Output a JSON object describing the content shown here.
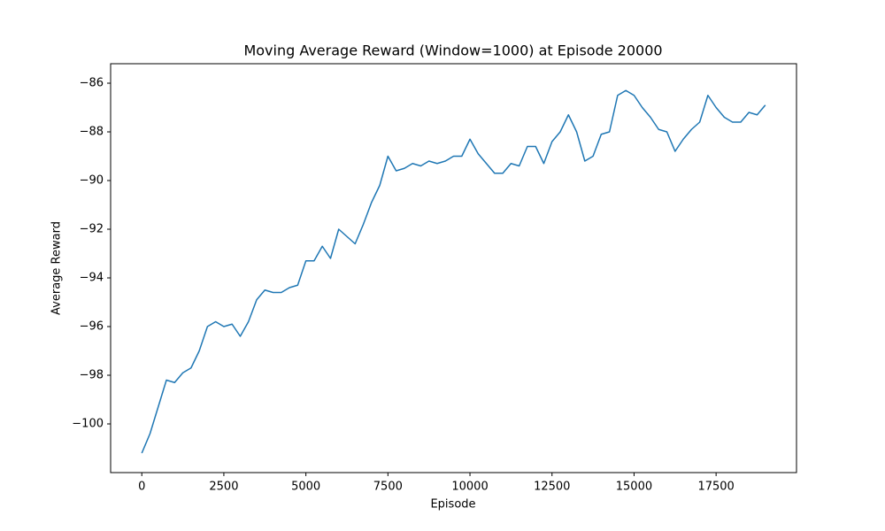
{
  "chart_data": {
    "type": "line",
    "title": "Moving Average Reward (Window=1000) at Episode 20000",
    "xlabel": "Episode",
    "ylabel": "Average Reward",
    "x": [
      0,
      250,
      500,
      750,
      1000,
      1250,
      1500,
      1750,
      2000,
      2250,
      2500,
      2750,
      3000,
      3250,
      3500,
      3750,
      4000,
      4250,
      4500,
      4750,
      5000,
      5250,
      5500,
      5750,
      6000,
      6250,
      6500,
      6750,
      7000,
      7250,
      7500,
      7750,
      8000,
      8250,
      8500,
      8750,
      9000,
      9250,
      9500,
      9750,
      10000,
      10250,
      10500,
      10750,
      11000,
      11250,
      11500,
      11750,
      12000,
      12250,
      12500,
      12750,
      13000,
      13250,
      13500,
      13750,
      14000,
      14250,
      14500,
      14750,
      15000,
      15250,
      15500,
      15750,
      16000,
      16250,
      16500,
      16750,
      17000,
      17250,
      17500,
      17750,
      18000,
      18250,
      18500,
      18750,
      19000
    ],
    "series": [
      {
        "name": "Average Reward",
        "color": "#1f77b4",
        "values": [
          -101.2,
          -100.4,
          -99.3,
          -98.2,
          -98.3,
          -97.9,
          -97.7,
          -97.0,
          -96.0,
          -95.8,
          -96.0,
          -95.9,
          -96.4,
          -95.8,
          -94.9,
          -94.5,
          -94.6,
          -94.6,
          -94.4,
          -94.3,
          -93.3,
          -93.3,
          -92.7,
          -93.2,
          -92.0,
          -92.3,
          -92.6,
          -91.8,
          -90.9,
          -90.2,
          -89.0,
          -89.6,
          -89.5,
          -89.3,
          -89.4,
          -89.2,
          -89.3,
          -89.2,
          -89.0,
          -89.0,
          -88.3,
          -88.9,
          -89.3,
          -89.7,
          -89.7,
          -89.3,
          -89.4,
          -88.6,
          -88.6,
          -89.3,
          -88.4,
          -88.0,
          -87.3,
          -88.0,
          -89.2,
          -89.0,
          -88.1,
          -88.0,
          -86.5,
          -86.3,
          -86.5,
          -87.0,
          -87.4,
          -87.9,
          -88.0,
          -88.8,
          -88.3,
          -87.9,
          -87.6,
          -86.5,
          -87.0,
          -87.4,
          -87.6,
          -87.6,
          -87.2,
          -87.3,
          -86.9
        ]
      }
    ],
    "xlim": [
      -950,
      19950
    ],
    "ylim": [
      -102,
      -85.2
    ],
    "xticks": [
      0,
      2500,
      5000,
      7500,
      10000,
      12500,
      15000,
      17500
    ],
    "yticks": [
      {
        "value": -100,
        "label": "−100"
      },
      {
        "value": -98,
        "label": "−98"
      },
      {
        "value": -96,
        "label": "−96"
      },
      {
        "value": -94,
        "label": "−94"
      },
      {
        "value": -92,
        "label": "−92"
      },
      {
        "value": -90,
        "label": "−90"
      },
      {
        "value": -88,
        "label": "−88"
      },
      {
        "value": -86,
        "label": "−86"
      }
    ]
  }
}
